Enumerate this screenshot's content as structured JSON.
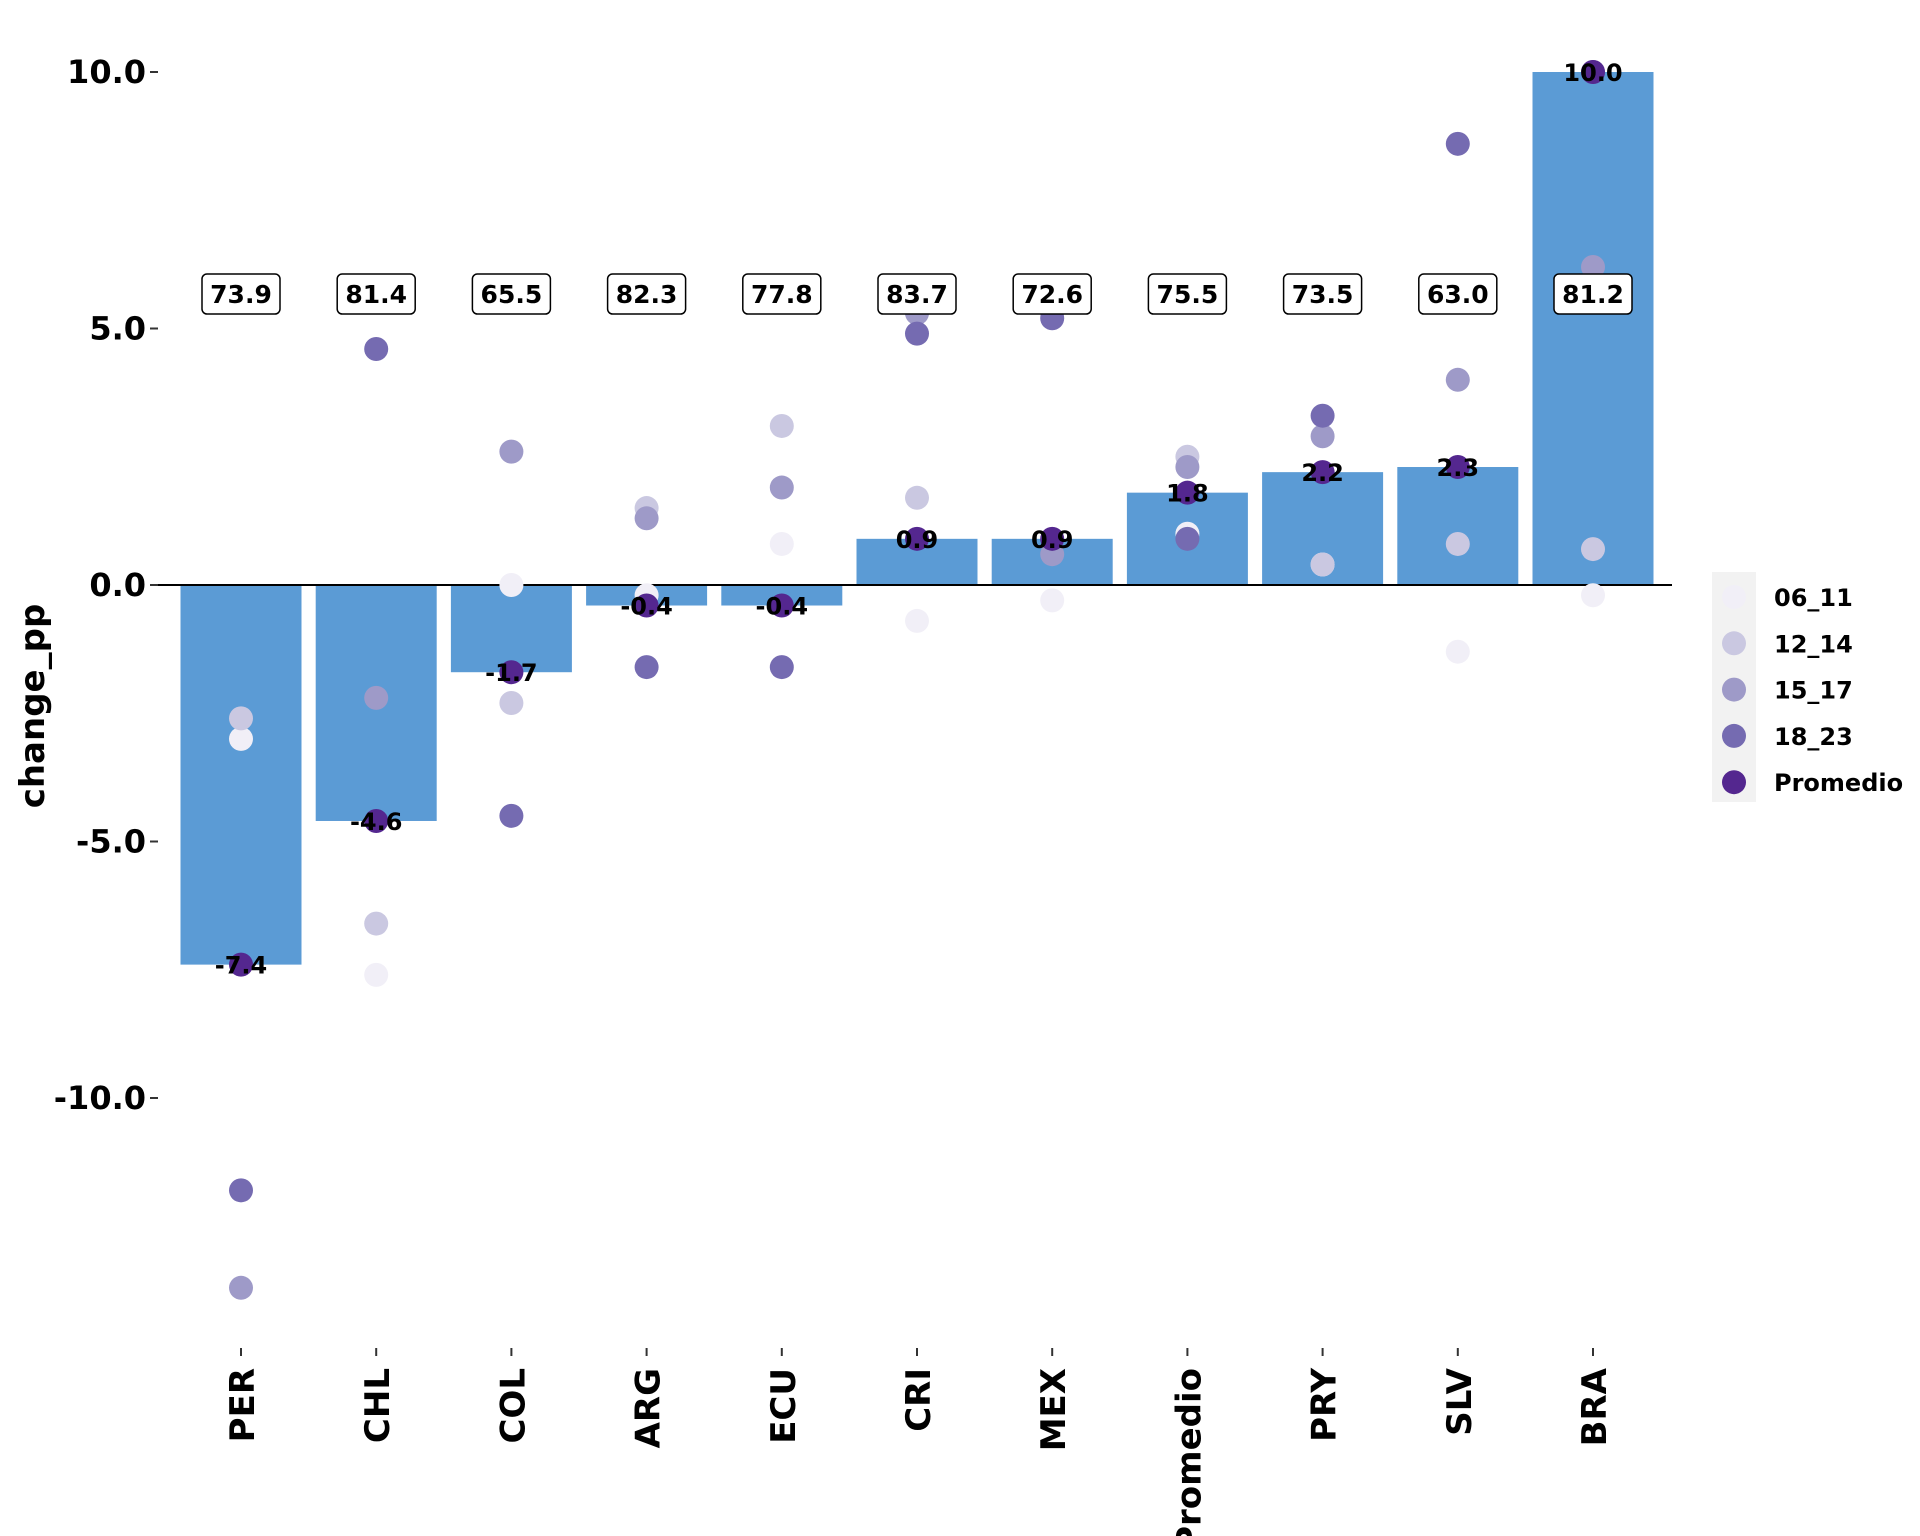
{
  "chart_data": {
    "type": "bar",
    "ylabel": "change_pp",
    "ylim": [
      -14.5,
      10.9
    ],
    "yticks": [
      10.0,
      5.0,
      0.0,
      -5.0,
      -10.0
    ],
    "ytick_labels": [
      "10.0",
      "5.0",
      "0.0",
      "-5.0",
      "-10.0"
    ],
    "categories": [
      "PER",
      "CHL",
      "COL",
      "ARG",
      "ECU",
      "CRI",
      "MEX",
      "Promedio",
      "PRY",
      "SLV",
      "BRA"
    ],
    "bar_values": [
      -7.4,
      -4.6,
      -1.7,
      -0.4,
      -0.4,
      0.9,
      0.9,
      1.8,
      2.2,
      2.3,
      10.0
    ],
    "bar_labels": [
      "-7.4",
      "-4.6",
      "-1.7",
      "-0.4",
      "-0.4",
      "0.9",
      "0.9",
      "1.8",
      "2.2",
      "2.3",
      "10.0"
    ],
    "box_labels": [
      "73.9",
      "81.4",
      "65.5",
      "82.3",
      "77.8",
      "83.7",
      "72.6",
      "75.5",
      "73.5",
      "63.0",
      "81.2"
    ],
    "bar_color": "#5b9bd5",
    "point_series": [
      {
        "name": "06_11",
        "color": "#f1eff7",
        "values": [
          -3.0,
          -7.6,
          0.0,
          -0.2,
          0.8,
          -0.7,
          -0.3,
          1.0,
          0.4,
          -1.3,
          -0.2
        ]
      },
      {
        "name": "12_14",
        "color": "#cac8e1",
        "values": [
          -2.6,
          -6.6,
          -2.3,
          1.5,
          3.1,
          1.7,
          5.3,
          2.5,
          0.4,
          0.8,
          0.7
        ]
      },
      {
        "name": "15_17",
        "color": "#9e9ac8",
        "values": [
          -13.7,
          -2.2,
          2.6,
          1.3,
          1.9,
          5.3,
          0.6,
          2.3,
          2.9,
          4.0,
          6.2
        ]
      },
      {
        "name": "18_23",
        "color": "#756bb1",
        "values": [
          -11.8,
          4.6,
          -4.5,
          -1.6,
          -1.6,
          4.9,
          5.2,
          0.9,
          3.3,
          8.6,
          10.0
        ]
      },
      {
        "name": "Promedio",
        "color": "#54278f",
        "values": [
          -7.4,
          -4.6,
          -1.7,
          -0.4,
          -0.4,
          0.9,
          0.9,
          1.8,
          2.2,
          2.3,
          10.0
        ]
      }
    ],
    "legend_position": "right",
    "grid": false
  }
}
